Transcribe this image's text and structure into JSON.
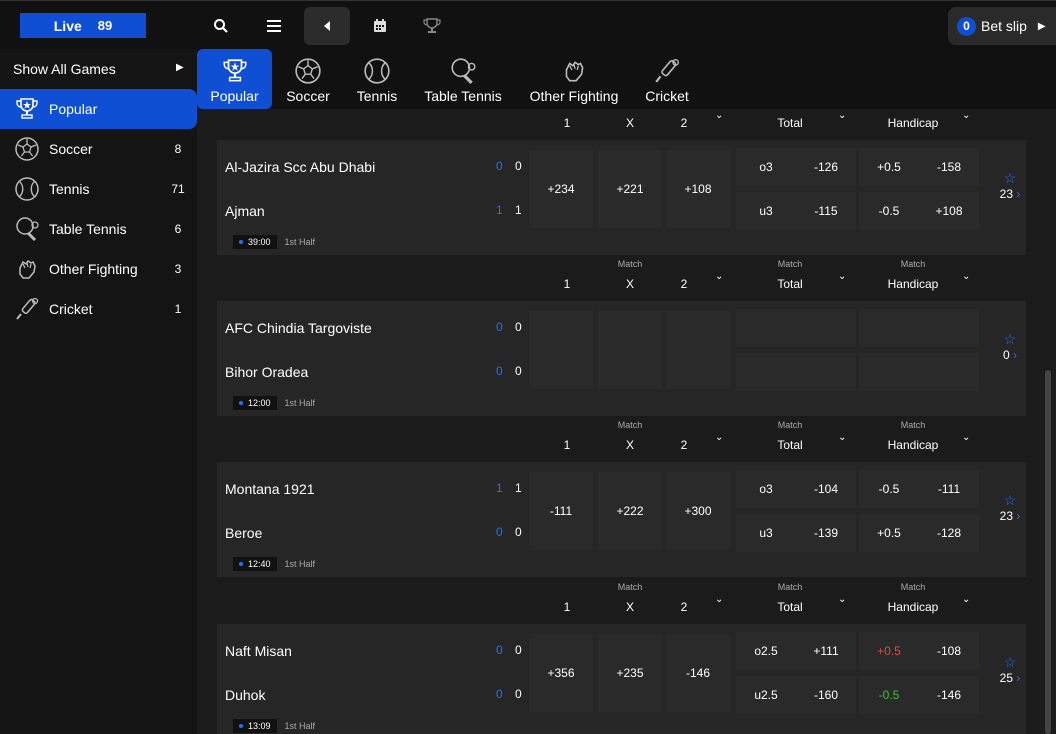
{
  "topbar": {
    "live_label": "Live",
    "live_count": "89",
    "betslip_count": "0",
    "betslip_label": "Bet slip"
  },
  "sidebar": {
    "show_all": "Show All Games",
    "items": [
      {
        "label": "Popular",
        "count": "",
        "icon": "trophy-icon"
      },
      {
        "label": "Soccer",
        "count": "8",
        "icon": "soccer-ball-icon"
      },
      {
        "label": "Tennis",
        "count": "71",
        "icon": "tennis-ball-icon"
      },
      {
        "label": "Table Tennis",
        "count": "6",
        "icon": "table-tennis-icon"
      },
      {
        "label": "Other Fighting",
        "count": "3",
        "icon": "fist-icon"
      },
      {
        "label": "Cricket",
        "count": "1",
        "icon": "cricket-bat-icon"
      }
    ]
  },
  "tabs": [
    "Popular",
    "Soccer",
    "Tennis",
    "Table Tennis",
    "Other Fighting",
    "Cricket"
  ],
  "header": {
    "one": "1",
    "x": "X",
    "two": "2",
    "match": "Match",
    "total": "Total",
    "handicap": "Handicap"
  },
  "matches": [
    {
      "home": "Al-Jazira Scc Abu Dhabi",
      "away": "Ajman",
      "home_s1": "0",
      "home_s2": "0",
      "away_s1": "1",
      "away_s2": "1",
      "home_s1_blue": true,
      "away_s1_blue": true,
      "time": "39:00",
      "half": "1st Half",
      "o1": "+234",
      "ox": "+221",
      "o2": "+108",
      "tot_top_k": "o3",
      "tot_top_v": "-126",
      "tot_bot_k": "u3",
      "tot_bot_v": "-115",
      "hc_top_k": "+0.5",
      "hc_top_v": "-158",
      "hc_bot_k": "-0.5",
      "hc_bot_v": "+108",
      "markets": "23"
    },
    {
      "home": "AFC Chindia Targoviste",
      "away": "Bihor Oradea",
      "home_s1": "0",
      "home_s2": "0",
      "away_s1": "0",
      "away_s2": "0",
      "time": "12:00",
      "half": "1st Half",
      "o1": "",
      "ox": "",
      "o2": "",
      "tot_top_k": "",
      "tot_top_v": "",
      "tot_bot_k": "",
      "tot_bot_v": "",
      "hc_top_k": "",
      "hc_top_v": "",
      "hc_bot_k": "",
      "hc_bot_v": "",
      "markets": "0"
    },
    {
      "home": "Montana 1921",
      "away": "Beroe",
      "home_s1": "1",
      "home_s2": "1",
      "away_s1": "0",
      "away_s2": "0",
      "time": "12:40",
      "half": "1st Half",
      "o1": "-111",
      "ox": "+222",
      "o2": "+300",
      "tot_top_k": "o3",
      "tot_top_v": "-104",
      "tot_bot_k": "u3",
      "tot_bot_v": "-139",
      "hc_top_k": "-0.5",
      "hc_top_v": "-111",
      "hc_bot_k": "+0.5",
      "hc_bot_v": "-128",
      "markets": "23"
    },
    {
      "home": "Naft Misan",
      "away": "Duhok",
      "home_s1": "0",
      "home_s2": "0",
      "away_s1": "0",
      "away_s2": "0",
      "time": "13:09",
      "half": "1st Half",
      "o1": "+356",
      "ox": "+235",
      "o2": "-146",
      "tot_top_k": "o2.5",
      "tot_top_v": "+111",
      "tot_bot_k": "u2.5",
      "tot_bot_v": "-160",
      "hc_top_k": "+0.5",
      "hc_top_v": "-108",
      "hc_bot_k": "-0.5",
      "hc_bot_v": "-146",
      "markets": "25"
    }
  ],
  "colors": {
    "accent": "#0f4fd4",
    "score_blue": "#1a73ff",
    "odds_up": "#3fbf3f",
    "odds_down": "#e04848"
  }
}
